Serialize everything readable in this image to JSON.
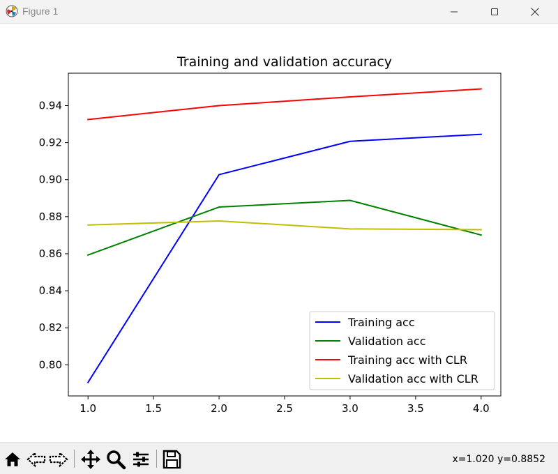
{
  "window": {
    "title": "Figure 1",
    "icons": [
      "matplotlib-icon",
      "minimize-icon",
      "maximize-icon",
      "close-icon"
    ]
  },
  "toolbar": {
    "tools": [
      "home-icon",
      "back-icon",
      "forward-icon",
      "pan-icon",
      "zoom-icon",
      "configure-subplots-icon",
      "save-icon"
    ],
    "coords": "x=1.020 y=0.8852"
  },
  "chart_data": {
    "type": "line",
    "title": "Training and validation accuracy",
    "xlabel": "",
    "ylabel": "",
    "xlim": [
      0.85,
      4.15
    ],
    "ylim": [
      0.7832,
      0.9575
    ],
    "x_ticks": [
      "1.0",
      "1.5",
      "2.0",
      "2.5",
      "3.0",
      "3.5",
      "4.0"
    ],
    "y_ticks": [
      "0.80",
      "0.82",
      "0.84",
      "0.86",
      "0.88",
      "0.90",
      "0.92",
      "0.94"
    ],
    "x": [
      1.0,
      2.0,
      3.0,
      4.0
    ],
    "series": [
      {
        "name": "Training acc",
        "color": "#0000ff",
        "values": [
          0.7905,
          0.9027,
          0.9207,
          0.9245
        ]
      },
      {
        "name": "Validation acc",
        "color": "#008000",
        "values": [
          0.8593,
          0.8852,
          0.8888,
          0.8701
        ]
      },
      {
        "name": "Training acc with CLR",
        "color": "#ff0000",
        "values": [
          0.9325,
          0.94,
          0.9447,
          0.949
        ]
      },
      {
        "name": "Validation acc with CLR",
        "color": "#bfbf00",
        "values": [
          0.8755,
          0.8777,
          0.8734,
          0.873
        ]
      }
    ],
    "grid": false,
    "legend": "lower-right"
  }
}
